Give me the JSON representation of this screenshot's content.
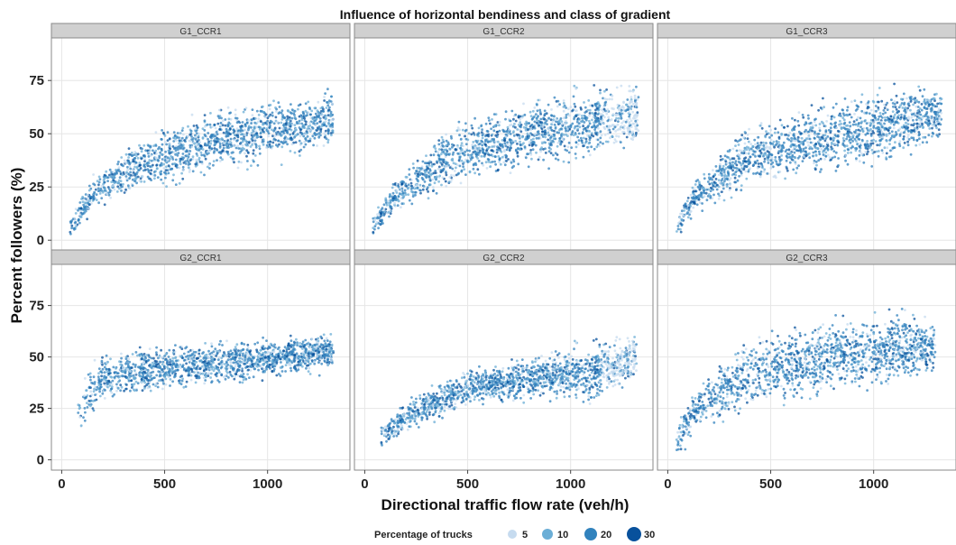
{
  "chart_data": {
    "type": "scatter",
    "title": "Influence of horizontal bendiness and class of gradient",
    "xlabel": "Directional traffic flow rate (veh/h)",
    "ylabel": "Percent followers (%)",
    "xlim": [
      -50,
      1400
    ],
    "ylim": [
      -5,
      95
    ],
    "x_ticks": [
      0,
      500,
      1000
    ],
    "y_ticks": [
      0,
      25,
      50,
      75
    ],
    "grid": true,
    "facet_layout": {
      "rows": 2,
      "cols": 3
    },
    "panels": [
      {
        "label": "G1_CCR1",
        "x_range": [
          40,
          1320
        ],
        "lower_curve": [
          [
            40,
            0
          ],
          [
            150,
            12
          ],
          [
            400,
            22
          ],
          [
            800,
            30
          ],
          [
            1100,
            35
          ],
          [
            1300,
            42
          ]
        ],
        "upper_curve": [
          [
            40,
            12
          ],
          [
            150,
            30
          ],
          [
            400,
            52
          ],
          [
            800,
            65
          ],
          [
            1100,
            70
          ],
          [
            1300,
            72
          ]
        ],
        "light_tail_at_high_x": false
      },
      {
        "label": "G1_CCR2",
        "x_range": [
          40,
          1330
        ],
        "lower_curve": [
          [
            40,
            0
          ],
          [
            150,
            12
          ],
          [
            400,
            22
          ],
          [
            800,
            30
          ],
          [
            1100,
            35
          ],
          [
            1300,
            40
          ]
        ],
        "upper_curve": [
          [
            40,
            12
          ],
          [
            150,
            30
          ],
          [
            400,
            55
          ],
          [
            800,
            70
          ],
          [
            1100,
            75
          ],
          [
            1300,
            78
          ]
        ],
        "light_tail_at_high_x": true
      },
      {
        "label": "G1_CCR3",
        "x_range": [
          40,
          1330
        ],
        "lower_curve": [
          [
            40,
            0
          ],
          [
            150,
            12
          ],
          [
            400,
            22
          ],
          [
            800,
            28
          ],
          [
            1100,
            33
          ],
          [
            1300,
            45
          ]
        ],
        "upper_curve": [
          [
            40,
            12
          ],
          [
            150,
            32
          ],
          [
            400,
            58
          ],
          [
            800,
            70
          ],
          [
            1100,
            75
          ],
          [
            1300,
            75
          ]
        ],
        "light_tail_at_high_x": false
      },
      {
        "label": "G2_CCR1",
        "x_range": [
          80,
          1320
        ],
        "lower_curve": [
          [
            80,
            8
          ],
          [
            200,
            25
          ],
          [
            500,
            32
          ],
          [
            1000,
            38
          ],
          [
            1300,
            42
          ]
        ],
        "upper_curve": [
          [
            80,
            42
          ],
          [
            200,
            55
          ],
          [
            500,
            58
          ],
          [
            1000,
            60
          ],
          [
            1300,
            64
          ]
        ],
        "light_tail_at_high_x": false
      },
      {
        "label": "G2_CCR2",
        "x_range": [
          80,
          1320
        ],
        "lower_curve": [
          [
            80,
            4
          ],
          [
            200,
            12
          ],
          [
            500,
            25
          ],
          [
            1000,
            28
          ],
          [
            1100,
            22
          ],
          [
            1300,
            35
          ]
        ],
        "upper_curve": [
          [
            80,
            18
          ],
          [
            200,
            30
          ],
          [
            500,
            45
          ],
          [
            1000,
            58
          ],
          [
            1300,
            64
          ]
        ],
        "light_tail_at_high_x": true
      },
      {
        "label": "G2_CCR3",
        "x_range": [
          40,
          1300
        ],
        "lower_curve": [
          [
            40,
            0
          ],
          [
            150,
            12
          ],
          [
            400,
            20
          ],
          [
            800,
            28
          ],
          [
            1100,
            32
          ],
          [
            1300,
            40
          ]
        ],
        "upper_curve": [
          [
            40,
            18
          ],
          [
            150,
            40
          ],
          [
            400,
            65
          ],
          [
            800,
            72
          ],
          [
            1100,
            75
          ],
          [
            1300,
            72
          ]
        ],
        "light_tail_at_high_x": false
      }
    ],
    "legend": {
      "title": "Percentage of trucks",
      "position": "bottom",
      "items": [
        {
          "label": "5",
          "color": "#c6dbef"
        },
        {
          "label": "10",
          "color": "#6baed6"
        },
        {
          "label": "20",
          "color": "#3182bd"
        },
        {
          "label": "30",
          "color": "#08519c"
        }
      ]
    },
    "colors": {
      "strip_background": "#d0d0d0",
      "panel_background": "#ffffff",
      "grid": "#e6e6e6",
      "panel_border": "#8a8a8a",
      "point_light": "#c6dbef",
      "point_mid": "#6baed6",
      "point_main": "#3182bd",
      "point_dark": "#08519c"
    }
  }
}
